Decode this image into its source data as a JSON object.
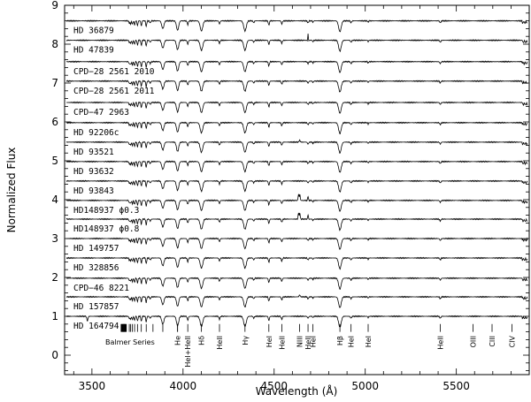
{
  "chart_data": {
    "type": "line",
    "title": "",
    "xlabel": "Wavelength (Å)",
    "ylabel": "Normalized Flux",
    "xlim": [
      3350,
      5900
    ],
    "ylim": [
      -0.5,
      9
    ],
    "xticks": [
      3500,
      4000,
      4500,
      5000,
      5500
    ],
    "yticks": [
      0,
      1,
      2,
      3,
      4,
      5,
      6,
      7,
      8,
      9
    ],
    "grid": false,
    "series": [
      {
        "name": "HD 36879",
        "offset": 8.6
      },
      {
        "name": "HD 47839",
        "offset": 8.1
      },
      {
        "name": "CPD−28 2561 2010",
        "offset": 7.55
      },
      {
        "name": "CPD−28 2561 2011",
        "offset": 7.05
      },
      {
        "name": "CPD−47 2963",
        "offset": 6.5
      },
      {
        "name": "HD 92206c",
        "offset": 5.98
      },
      {
        "name": "HD 93521",
        "offset": 5.48
      },
      {
        "name": "HD 93632",
        "offset": 4.98
      },
      {
        "name": "HD 93843",
        "offset": 4.48
      },
      {
        "name": "HD148937 ϕ0.3",
        "offset": 3.98
      },
      {
        "name": "HD148937 ϕ0.8",
        "offset": 3.5
      },
      {
        "name": "HD 149757",
        "offset": 3.0
      },
      {
        "name": "HD 328856",
        "offset": 2.5
      },
      {
        "name": "CPD−46 8221",
        "offset": 1.98
      },
      {
        "name": "HD 157857",
        "offset": 1.5
      },
      {
        "name": "HD 164794",
        "offset": 1.0
      }
    ],
    "balmer_label": "Balmer Series",
    "line_ids": [
      {
        "label": "He",
        "wavelength": 3970
      },
      {
        "label": "HeI+HeII",
        "wavelength": 4026
      },
      {
        "label": "Hδ",
        "wavelength": 4101
      },
      {
        "label": "HeII",
        "wavelength": 4200
      },
      {
        "label": "Hγ",
        "wavelength": 4340
      },
      {
        "label": "HeI",
        "wavelength": 4471
      },
      {
        "label": "HeII",
        "wavelength": 4542
      },
      {
        "label": "NIII",
        "wavelength": 4640
      },
      {
        "label": "HeII",
        "wavelength": 4686
      },
      {
        "label": "HeI",
        "wavelength": 4713
      },
      {
        "label": "Hβ",
        "wavelength": 4861
      },
      {
        "label": "HeI",
        "wavelength": 4922
      },
      {
        "label": "HeI",
        "wavelength": 5016
      },
      {
        "label": "HeII",
        "wavelength": 5412
      },
      {
        "label": "OIII",
        "wavelength": 5592
      },
      {
        "label": "CIII",
        "wavelength": 5696
      },
      {
        "label": "CIV",
        "wavelength": 5805
      }
    ]
  }
}
